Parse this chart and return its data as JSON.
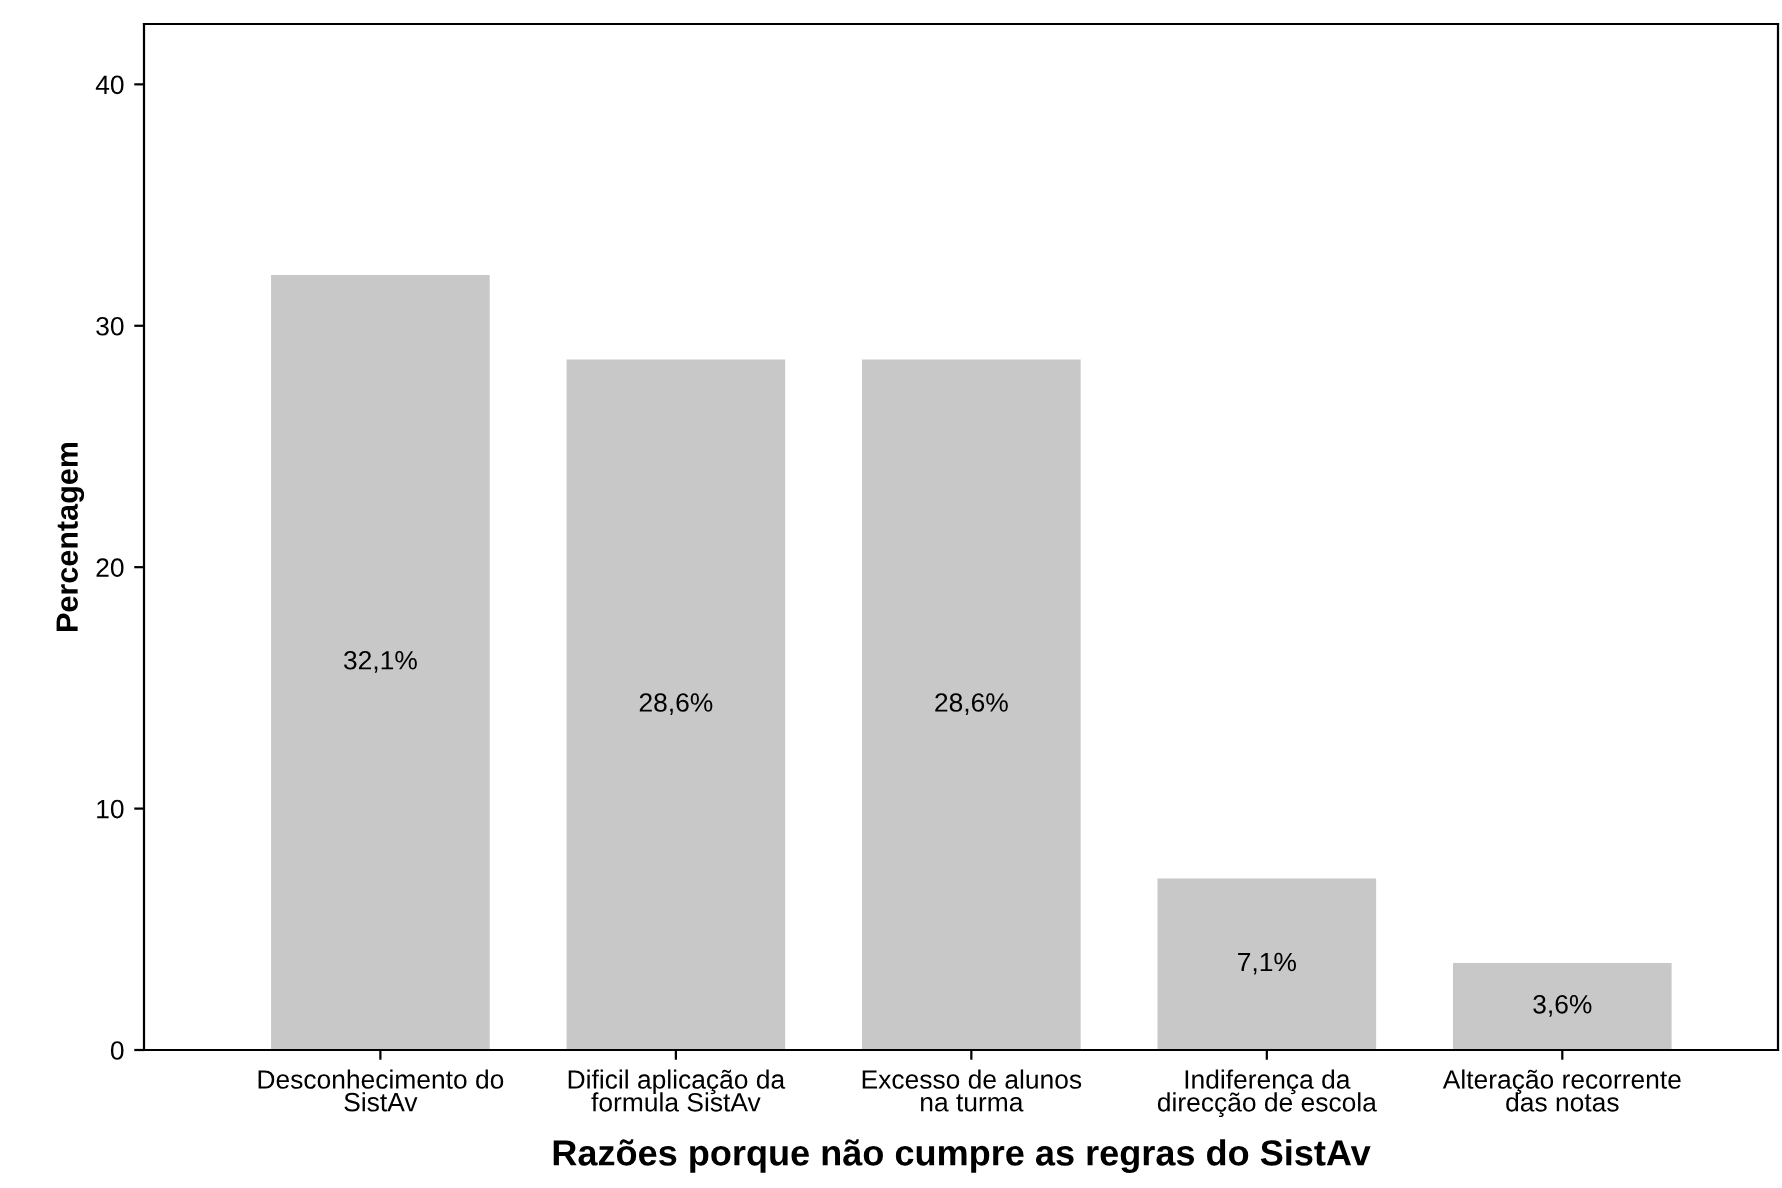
{
  "chart_data": {
    "type": "bar",
    "xlabel": "Razões porque não cumpre as regras do SistAv",
    "ylabel": "Percentagem",
    "categories": [
      "Desconhecimento do\nSistAv",
      "Dificil aplicação da\nformula SistAv",
      "Excesso de alunos\nna turma",
      "Indiferença da\ndirecção de escola",
      "Alteração recorrente\ndas notas"
    ],
    "values": [
      32.1,
      28.6,
      28.6,
      7.1,
      3.6
    ],
    "value_labels": [
      "32,1%",
      "28,6%",
      "28,6%",
      "7,1%",
      "3,6%"
    ],
    "color": "#c8c8c8",
    "ylim": [
      0,
      42.5
    ],
    "yticks": [
      0,
      10,
      20,
      30,
      40
    ],
    "grid": false,
    "legend": false
  }
}
